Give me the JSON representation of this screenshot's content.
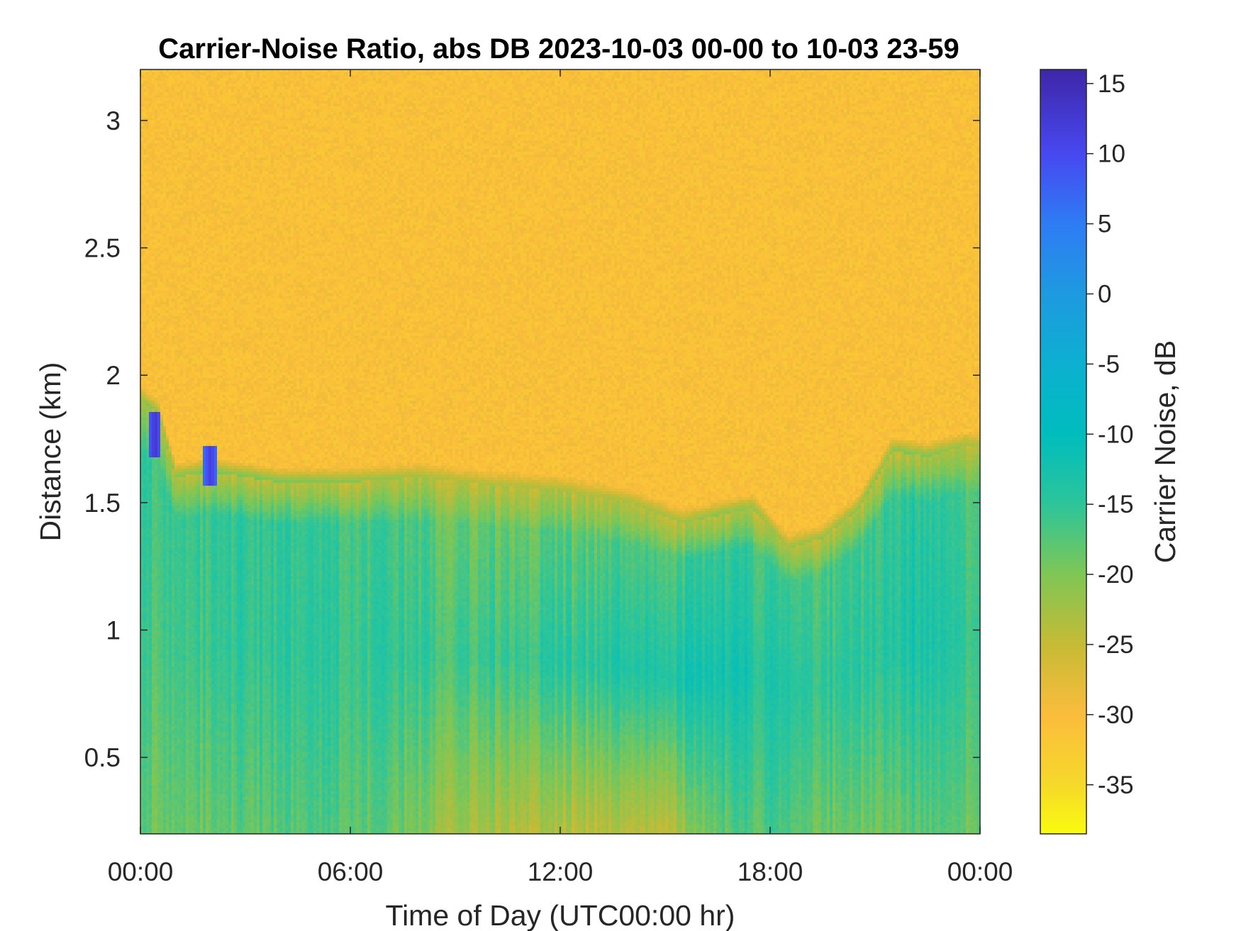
{
  "chart_data": {
    "type": "heatmap",
    "title": "Carrier-Noise Ratio, abs DB 2023-10-03 00-00 to 10-03 23-59",
    "xlabel": "Time of Day (UTC00:00 hr)",
    "ylabel": "Distance (km)",
    "colorbar_label": "Carrier Noise, dB",
    "x_range_hours": [
      0,
      24
    ],
    "x_ticks": [
      {
        "value": 0,
        "label": "00:00"
      },
      {
        "value": 6,
        "label": "06:00"
      },
      {
        "value": 12,
        "label": "12:00"
      },
      {
        "value": 18,
        "label": "18:00"
      },
      {
        "value": 24,
        "label": "00:00"
      }
    ],
    "ylim_km": [
      0.2,
      3.2
    ],
    "y_ticks": [
      {
        "value": 0.5,
        "label": "0.5"
      },
      {
        "value": 1,
        "label": "1"
      },
      {
        "value": 1.5,
        "label": "1.5"
      },
      {
        "value": 2,
        "label": "2"
      },
      {
        "value": 2.5,
        "label": "2.5"
      },
      {
        "value": 3,
        "label": "3"
      }
    ],
    "colorbar_range_db": [
      -38.5,
      16
    ],
    "colorbar_ticks": [
      {
        "value": 15,
        "label": "15"
      },
      {
        "value": 10,
        "label": "10"
      },
      {
        "value": 5,
        "label": "5"
      },
      {
        "value": 0,
        "label": "0"
      },
      {
        "value": -5,
        "label": "-5"
      },
      {
        "value": -10,
        "label": "-10"
      },
      {
        "value": -15,
        "label": "-15"
      },
      {
        "value": -20,
        "label": "-20"
      },
      {
        "value": -25,
        "label": "-25"
      },
      {
        "value": -30,
        "label": "-30"
      },
      {
        "value": -35,
        "label": "-35"
      }
    ],
    "colormap": "parula-reversed",
    "colormap_stops": [
      {
        "db": 16,
        "color": "#3e26a8"
      },
      {
        "db": 10,
        "color": "#4748f0"
      },
      {
        "db": 5,
        "color": "#2e7cf4"
      },
      {
        "db": 0,
        "color": "#1e9ae0"
      },
      {
        "db": -5,
        "color": "#0cb0d0"
      },
      {
        "db": -10,
        "color": "#00bdbd"
      },
      {
        "db": -15,
        "color": "#2cc59a"
      },
      {
        "db": -20,
        "color": "#7fc655"
      },
      {
        "db": -25,
        "color": "#c6bb35"
      },
      {
        "db": -30,
        "color": "#fbbc3c"
      },
      {
        "db": -35,
        "color": "#f6d92a"
      },
      {
        "db": -38.5,
        "color": "#f9fb0e"
      }
    ],
    "noise_floor_db": -30.5,
    "boundary_height_km": {
      "hours": [
        0,
        0.5,
        1,
        2,
        3,
        4,
        6,
        8,
        10,
        12,
        14,
        15.5,
        16.5,
        17.5,
        18.5,
        19.5,
        20.5,
        21.5,
        22.5,
        23.5,
        24
      ],
      "values": [
        1.9,
        1.85,
        1.6,
        1.62,
        1.6,
        1.58,
        1.58,
        1.6,
        1.57,
        1.55,
        1.5,
        1.42,
        1.45,
        1.48,
        1.32,
        1.36,
        1.47,
        1.7,
        1.68,
        1.72,
        1.72
      ]
    },
    "signal_profile_db": {
      "hours": [
        0,
        3,
        6,
        9,
        12,
        15,
        16.5,
        18,
        20,
        22,
        24
      ],
      "near_surface": [
        -19,
        -18,
        -17,
        -22,
        -24,
        -24,
        -18,
        -17,
        -19,
        -18,
        -19
      ],
      "mid_layer": [
        -17,
        -15,
        -15,
        -16,
        -15,
        -13,
        -12,
        -14,
        -15,
        -13,
        -16
      ],
      "upper_layer": [
        -16,
        -15,
        -16,
        -19,
        -19,
        -18,
        -16,
        -17,
        -17,
        -15,
        -18
      ]
    },
    "high_snr_patches": [
      {
        "hour": 0.42,
        "distance_km_from": 1.68,
        "distance_km_to": 1.86,
        "db": 13
      },
      {
        "hour": 2.0,
        "distance_km_from": 1.57,
        "distance_km_to": 1.72,
        "db": 12
      }
    ]
  }
}
